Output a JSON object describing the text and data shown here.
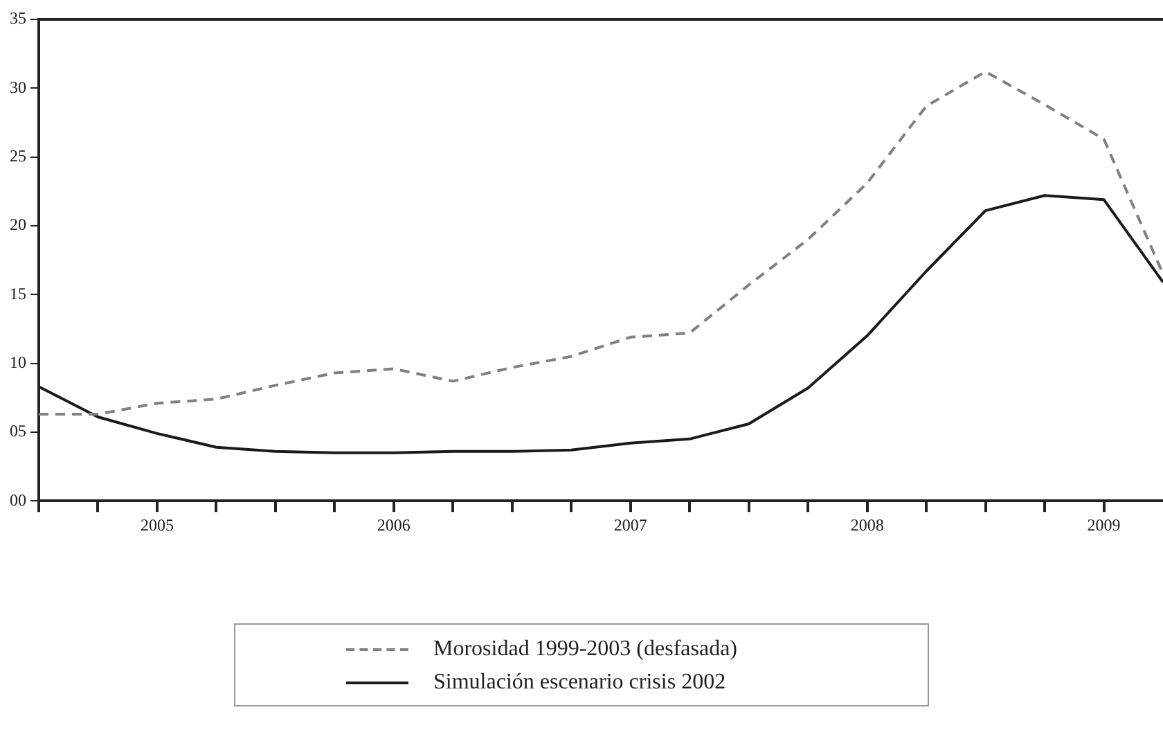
{
  "chart_data": {
    "type": "line",
    "x": [
      2005,
      2005.25,
      2005.5,
      2005.75,
      2006,
      2006.25,
      2006.5,
      2006.75,
      2007,
      2007.25,
      2007.5,
      2007.75,
      2008,
      2008.25,
      2008.5,
      2008.75,
      2009,
      2009.25,
      2009.5,
      2009.75
    ],
    "series": [
      {
        "name": "Morosidad 1999-2003 (desfasada)",
        "color": "#808080",
        "line_style": "dashed",
        "values": [
          6.3,
          6.3,
          7.1,
          7.4,
          8.4,
          9.3,
          9.6,
          8.7,
          9.7,
          10.5,
          11.9,
          12.2,
          15.7,
          19.0,
          23.1,
          28.7,
          31.2,
          28.8,
          26.3,
          16.5
        ]
      },
      {
        "name": "Simulación escenario crisis 2002",
        "color": "#1a1a1a",
        "line_style": "solid",
        "values": [
          8.3,
          6.1,
          4.9,
          3.9,
          3.6,
          3.5,
          3.5,
          3.6,
          3.6,
          3.7,
          4.2,
          4.5,
          5.6,
          8.2,
          12.0,
          16.7,
          21.1,
          22.2,
          21.9,
          15.9
        ]
      }
    ],
    "xlim": [
      2005,
      2009.75
    ],
    "xticks": [
      {
        "value": 2005,
        "label": null
      },
      {
        "value": 2005.25,
        "label": null
      },
      {
        "value": 2005.5,
        "label": "2005"
      },
      {
        "value": 2005.75,
        "label": null
      },
      {
        "value": 2006,
        "label": null
      },
      {
        "value": 2006.25,
        "label": null
      },
      {
        "value": 2006.5,
        "label": "2006"
      },
      {
        "value": 2006.75,
        "label": null
      },
      {
        "value": 2007,
        "label": null
      },
      {
        "value": 2007.25,
        "label": null
      },
      {
        "value": 2007.5,
        "label": "2007"
      },
      {
        "value": 2007.75,
        "label": null
      },
      {
        "value": 2008,
        "label": null
      },
      {
        "value": 2008.25,
        "label": null
      },
      {
        "value": 2008.5,
        "label": "2008"
      },
      {
        "value": 2008.75,
        "label": null
      },
      {
        "value": 2009,
        "label": null
      },
      {
        "value": 2009.25,
        "label": null
      },
      {
        "value": 2009.5,
        "label": "2009"
      }
    ],
    "ylim": [
      0,
      35
    ],
    "yticks": [
      {
        "value": 0,
        "label": "00"
      },
      {
        "value": 5,
        "label": "05"
      },
      {
        "value": 10,
        "label": "10"
      },
      {
        "value": 15,
        "label": "15"
      },
      {
        "value": 20,
        "label": "20"
      },
      {
        "value": 25,
        "label": "25"
      },
      {
        "value": 30,
        "label": "30"
      },
      {
        "value": 35,
        "label": "35"
      }
    ],
    "grid": false,
    "legend": "bottom",
    "marker": "none"
  }
}
